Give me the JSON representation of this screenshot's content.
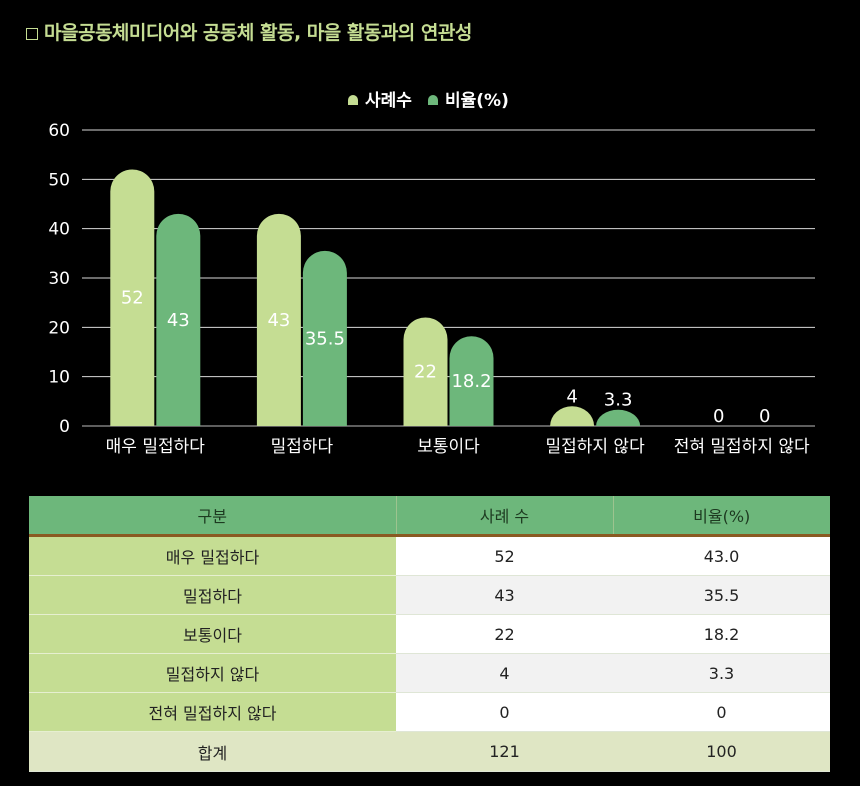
{
  "title": "마을공동체미디어와 공동체 활동, 마을 활동과의 연관성",
  "chart_data": {
    "type": "bar",
    "categories": [
      "매우 밀접하다",
      "밀접하다",
      "보통이다",
      "밀접하지 않다",
      "전혀 밀접하지 않다"
    ],
    "series": [
      {
        "name": "사례수",
        "values": [
          52,
          43,
          22,
          4,
          0
        ],
        "labels": [
          "52",
          "43",
          "22",
          "4",
          "0"
        ],
        "color": "#c5dd93"
      },
      {
        "name": "비율(%)",
        "values": [
          43,
          35.5,
          18.2,
          3.3,
          0
        ],
        "labels": [
          "43",
          "35.5",
          "18.2",
          "3.3",
          "0"
        ],
        "color": "#6db77b"
      }
    ],
    "ylim": [
      0,
      60
    ],
    "yticks": [
      0,
      10,
      20,
      30,
      40,
      50,
      60
    ],
    "grid": true,
    "legend": "top-center"
  },
  "table": {
    "headers": [
      "구분",
      "사례 수",
      "비율(%)"
    ],
    "rows": [
      [
        "매우 밀접하다",
        "52",
        "43.0"
      ],
      [
        "밀접하다",
        "43",
        "35.5"
      ],
      [
        "보통이다",
        "22",
        "18.2"
      ],
      [
        "밀접하지 않다",
        "4",
        "3.3"
      ],
      [
        "전혀 밀접하지 않다",
        "0",
        "0"
      ]
    ],
    "total": [
      "합계",
      "121",
      "100"
    ]
  }
}
